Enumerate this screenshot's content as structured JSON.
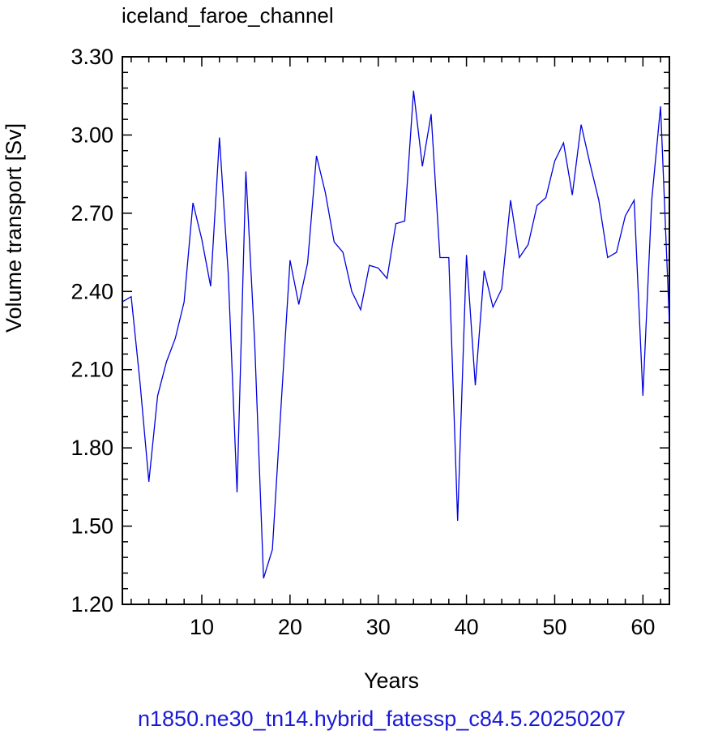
{
  "title": "iceland_faroe_channel",
  "footer_label": "n1850.ne30_tn14.hybrid_fatessp_c84.5.20250207",
  "colors": {
    "line": "#0000e0",
    "axis": "#000000",
    "footer": "#1a1ad6"
  },
  "chart_data": {
    "type": "line",
    "title": "iceland_faroe_channel",
    "xlabel": "Years",
    "ylabel": "Volume transport [Sv]",
    "xlim": [
      1,
      63
    ],
    "ylim": [
      1.2,
      3.3
    ],
    "xticks": [
      10,
      20,
      30,
      40,
      50,
      60
    ],
    "xtick_labels": [
      "10",
      "20",
      "30",
      "40",
      "50",
      "60"
    ],
    "yticks": [
      1.2,
      1.5,
      1.8,
      2.1,
      2.4,
      2.7,
      3.0,
      3.3
    ],
    "ytick_labels": [
      "1.20",
      "1.50",
      "1.80",
      "2.10",
      "2.40",
      "2.70",
      "3.00",
      "3.30"
    ],
    "grid": false,
    "series": [
      {
        "x": [
          1,
          2,
          3,
          4,
          5,
          6,
          7,
          8,
          9,
          10,
          11,
          12,
          13,
          14,
          15,
          16,
          17,
          18,
          19,
          20,
          21,
          22,
          23,
          24,
          25,
          26,
          27,
          28,
          29,
          30,
          31,
          32,
          33,
          34,
          35,
          36,
          37,
          38,
          39,
          40,
          41,
          42,
          43,
          44,
          45,
          46,
          47,
          48,
          49,
          50,
          51,
          52,
          53,
          54,
          55,
          56,
          57,
          58,
          59,
          60,
          61,
          62,
          63
        ],
        "values": [
          2.36,
          2.38,
          2.05,
          1.67,
          2.0,
          2.13,
          2.22,
          2.36,
          2.74,
          2.6,
          2.42,
          2.99,
          2.47,
          1.63,
          2.86,
          2.2,
          1.3,
          1.41,
          1.97,
          2.52,
          2.35,
          2.51,
          2.92,
          2.78,
          2.59,
          2.55,
          2.4,
          2.33,
          2.5,
          2.49,
          2.45,
          2.66,
          2.67,
          3.17,
          2.88,
          3.08,
          2.53,
          2.53,
          1.52,
          2.54,
          2.04,
          2.48,
          2.34,
          2.41,
          2.75,
          2.53,
          2.58,
          2.73,
          2.76,
          2.9,
          2.97,
          2.77,
          3.04,
          2.89,
          2.75,
          2.53,
          2.55,
          2.69,
          2.75,
          2.0,
          2.75,
          3.11,
          2.28
        ]
      }
    ]
  }
}
